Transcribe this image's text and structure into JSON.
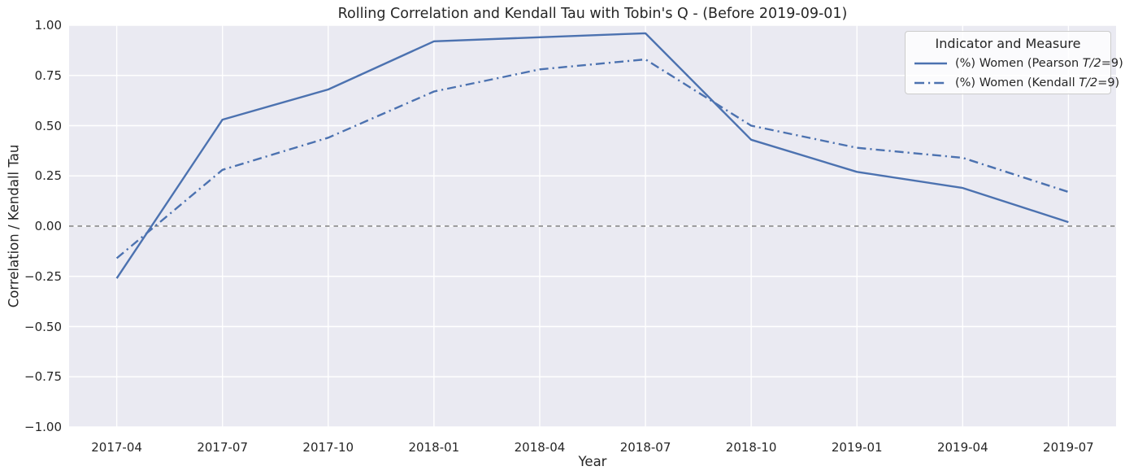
{
  "figure": {
    "title": "Rolling Correlation and Kendall Tau with Tobin's Q - (Before 2019-09-01)",
    "xlabel": "Year",
    "ylabel": "Correlation / Kendall Tau"
  },
  "legend": {
    "title": "Indicator and Measure",
    "entries": [
      {
        "prefix": "(%) Women (Pearson ",
        "math": "T/2",
        "suffix": "=9)",
        "style": "solid"
      },
      {
        "prefix": "(%) Women (Kendall ",
        "math": "T/2",
        "suffix": "=9)",
        "style": "dashdot"
      }
    ]
  },
  "colors": {
    "line_blue": "#4c72b0",
    "axes_background": "#eaeaf2",
    "grid": "#ffffff",
    "zero_line": "#808080",
    "text": "#262626",
    "legend_border": "#cccccc"
  },
  "chart_data": {
    "type": "line",
    "title": "Rolling Correlation and Kendall Tau with Tobin's Q - (Before 2019-09-01)",
    "xlabel": "Year",
    "ylabel": "Correlation / Kendall Tau",
    "categories": [
      "2017-04",
      "2017-07",
      "2017-10",
      "2018-01",
      "2018-04",
      "2018-07",
      "2018-10",
      "2019-01",
      "2019-04",
      "2019-07"
    ],
    "series": [
      {
        "id": "pearson",
        "name": "(%) Women (Pearson T/2=9)",
        "style": "solid",
        "values": [
          -0.26,
          0.53,
          0.68,
          0.92,
          0.94,
          0.96,
          0.43,
          0.27,
          0.19,
          0.02
        ]
      },
      {
        "id": "kendall",
        "name": "(%) Women (Kendall T/2=9)",
        "style": "dashdot",
        "values": [
          -0.16,
          0.28,
          0.44,
          0.67,
          0.78,
          0.83,
          0.5,
          0.39,
          0.34,
          0.17
        ]
      }
    ],
    "ylim": [
      -1.0,
      1.0
    ],
    "yticks": [
      {
        "value": 1.0,
        "label": "1.00"
      },
      {
        "value": 0.75,
        "label": "0.75"
      },
      {
        "value": 0.5,
        "label": "0.50"
      },
      {
        "value": 0.25,
        "label": "0.25"
      },
      {
        "value": 0.0,
        "label": "0.00"
      },
      {
        "value": -0.25,
        "label": "−0.25"
      },
      {
        "value": -0.5,
        "label": "−0.50"
      },
      {
        "value": -0.75,
        "label": "−0.75"
      },
      {
        "value": -1.0,
        "label": "−1.00"
      }
    ],
    "zero_line": true,
    "grid": true,
    "legend_position": "upper right",
    "legend_title": "Indicator and Measure"
  }
}
